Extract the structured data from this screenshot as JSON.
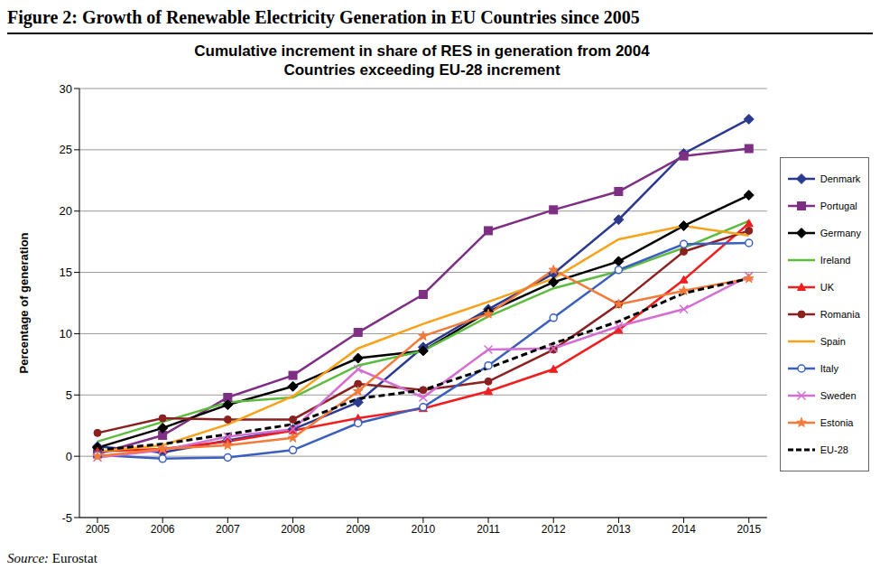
{
  "chart_data": {
    "type": "line",
    "figure_title": "Figure 2: Growth of Renewable Electricity Generation in EU Countries since 2005",
    "title": "Cumulative increment in share of RES in generation from 2004",
    "subtitle": "Countries exceeding EU-28 increment",
    "y_label": "Percentage of generation",
    "source_label": "Source:",
    "source": "Eurostat",
    "categories": [
      "2005",
      "2006",
      "2007",
      "2008",
      "2009",
      "2010",
      "2011",
      "2012",
      "2013",
      "2014",
      "2015"
    ],
    "ylim": [
      -5,
      30
    ],
    "yticks": [
      -5,
      0,
      5,
      10,
      15,
      20,
      25,
      30
    ],
    "grid": true,
    "legend": "right",
    "series": [
      {
        "name": "Denmark",
        "color": "#2B3A8F",
        "marker": "diamond",
        "line_style": "solid",
        "values": [
          0.8,
          0.3,
          1.3,
          2.2,
          4.4,
          8.9,
          12.0,
          14.9,
          19.3,
          24.7,
          27.5
        ]
      },
      {
        "name": "Portugal",
        "color": "#7E2F84",
        "marker": "square",
        "line_style": "solid",
        "values": [
          0.2,
          1.7,
          4.8,
          6.6,
          10.1,
          13.2,
          18.4,
          20.1,
          21.6,
          24.5,
          25.1
        ]
      },
      {
        "name": "Germany",
        "color": "#000000",
        "marker": "diamond",
        "line_style": "solid",
        "values": [
          0.7,
          2.3,
          4.2,
          5.7,
          8.0,
          8.6,
          11.8,
          14.2,
          15.9,
          18.8,
          21.3
        ]
      },
      {
        "name": "Ireland",
        "color": "#5DBB3F",
        "marker": "none",
        "line_style": "solid",
        "values": [
          1.2,
          2.8,
          4.4,
          4.8,
          7.4,
          8.6,
          11.4,
          13.7,
          15.1,
          17.0,
          19.2
        ]
      },
      {
        "name": "UK",
        "color": "#F01E1E",
        "marker": "triangle",
        "line_style": "solid",
        "values": [
          0.4,
          0.6,
          1.2,
          2.1,
          3.1,
          3.9,
          5.3,
          7.1,
          10.3,
          14.4,
          19.0
        ]
      },
      {
        "name": "Romania",
        "color": "#8B2020",
        "marker": "circle",
        "line_style": "solid",
        "values": [
          1.9,
          3.1,
          3.0,
          3.0,
          5.9,
          5.4,
          6.1,
          8.7,
          12.4,
          16.7,
          18.4
        ]
      },
      {
        "name": "Spain",
        "color": "#F7A21B",
        "marker": "none",
        "line_style": "solid",
        "values": [
          0.4,
          0.9,
          2.6,
          4.9,
          8.8,
          10.8,
          12.6,
          14.5,
          17.7,
          18.8,
          18.0
        ]
      },
      {
        "name": "Italy",
        "color": "#3A5FBF",
        "marker": "circle_open",
        "line_style": "solid",
        "values": [
          0.1,
          -0.2,
          -0.1,
          0.5,
          2.7,
          4.0,
          7.4,
          11.3,
          15.2,
          17.3,
          17.4
        ]
      },
      {
        "name": "Sweden",
        "color": "#D36FD3",
        "marker": "x",
        "line_style": "solid",
        "values": [
          -0.1,
          0.5,
          1.6,
          2.2,
          7.1,
          4.8,
          8.7,
          8.8,
          10.6,
          12.0,
          14.7
        ]
      },
      {
        "name": "Estonia",
        "color": "#F47A3A",
        "marker": "star",
        "line_style": "solid",
        "values": [
          0.0,
          0.6,
          0.9,
          1.5,
          5.3,
          9.8,
          11.6,
          15.2,
          12.4,
          13.5,
          14.5
        ]
      },
      {
        "name": "EU-28",
        "color": "#000000",
        "marker": "none",
        "line_style": "dashed",
        "values": [
          0.5,
          1.0,
          1.8,
          2.6,
          4.7,
          5.4,
          7.2,
          9.2,
          11.0,
          13.3,
          14.5
        ]
      }
    ]
  }
}
